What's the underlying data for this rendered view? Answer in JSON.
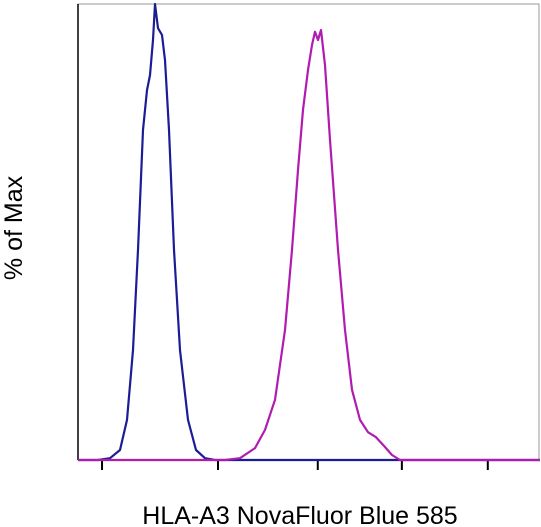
{
  "chart_data": {
    "type": "line",
    "xlabel": "HLA-A3 NovaFluor Blue 585",
    "ylabel": "% of Max",
    "xlim": [
      0,
      1000
    ],
    "ylim": [
      0,
      100
    ],
    "xticks": [
      52,
      303,
      519,
      701,
      887
    ],
    "series": [
      {
        "color": "#1c1c96",
        "x": [
          0,
          43.3,
          69.3,
          90.9,
          106.1,
          119.0,
          129.9,
          140.7,
          149.4,
          155.8,
          162.3,
          166.7,
          173.2,
          181.8,
          188.3,
          197.0,
          207.8,
          220.8,
          238.1,
          255.4,
          274.9,
          296.5,
          1000
        ],
        "values": [
          0,
          0,
          0.4,
          2.2,
          8.8,
          24.1,
          46.1,
          72.4,
          81.1,
          84.4,
          92.1,
          100,
          94.7,
          93.2,
          87.7,
          72.4,
          46.1,
          24.1,
          8.8,
          2.2,
          0.4,
          0,
          0
        ]
      },
      {
        "color": "#b01cb0",
        "x": [
          0,
          318.2,
          350.6,
          383.1,
          404.8,
          426.4,
          448.1,
          463.2,
          476.2,
          487.0,
          497.8,
          506.5,
          513.0,
          519.5,
          526.0,
          534.6,
          545.5,
          562.8,
          577.9,
          593.1,
          610.4,
          627.7,
          645.0,
          662.3,
          679.7,
          697.0,
          718.6,
          1000
        ],
        "values": [
          0,
          0,
          0.4,
          2.6,
          6.6,
          13.2,
          28.5,
          46.1,
          63.6,
          76.8,
          85.5,
          91.0,
          93.9,
          92.1,
          94.3,
          86.6,
          70.2,
          46.1,
          28.5,
          15.4,
          8.8,
          6.1,
          5.0,
          3.1,
          1.1,
          0,
          0,
          0
        ]
      }
    ]
  }
}
